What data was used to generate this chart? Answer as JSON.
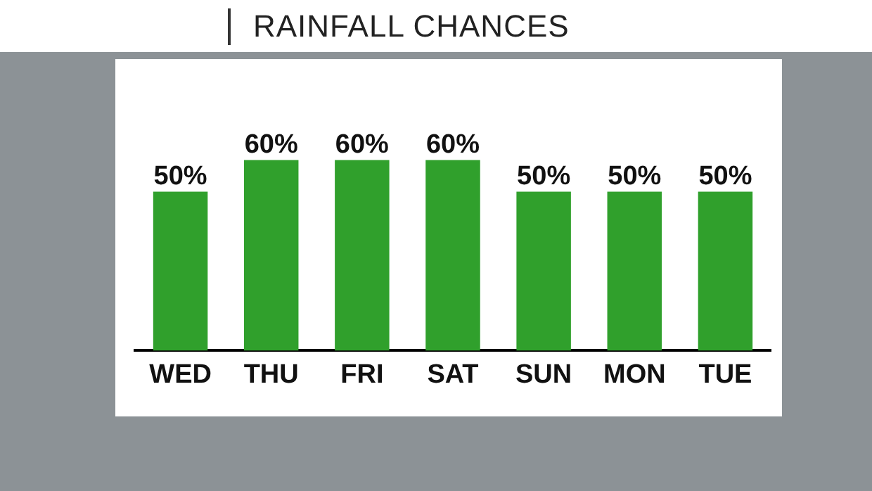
{
  "chart_data": {
    "type": "bar",
    "title": "RAINFALL CHANCES",
    "categories": [
      "WED",
      "THU",
      "FRI",
      "SAT",
      "SUN",
      "MON",
      "TUE"
    ],
    "values": [
      50,
      60,
      60,
      60,
      50,
      50,
      50
    ],
    "value_labels": [
      "50%",
      "60%",
      "60%",
      "60%",
      "50%",
      "50%",
      "50%"
    ],
    "color": "#30a02c",
    "grid": false,
    "legend": false
  }
}
